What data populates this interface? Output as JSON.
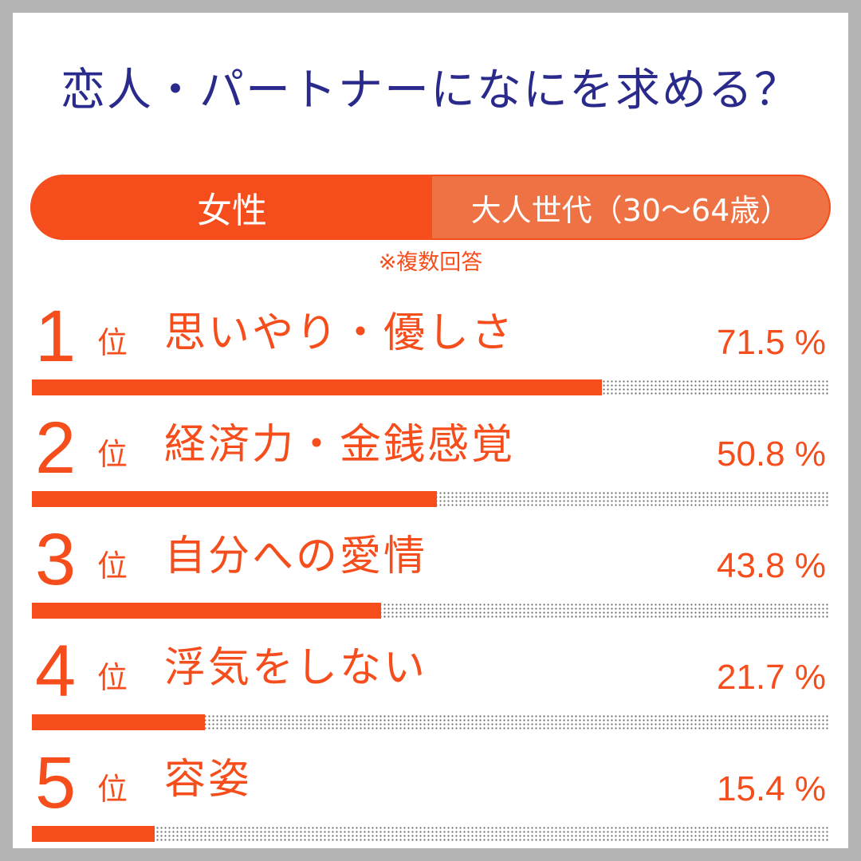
{
  "title": "恋人・パートナーになにを求める？",
  "segment": {
    "left": "女性",
    "right": "大人世代（30〜64歳）"
  },
  "note": "※複数回答",
  "rank_unit": "位",
  "colors": {
    "accent": "#f54d1c",
    "accent_light": "#ee7243",
    "title": "#2a2a8c"
  },
  "chart_data": {
    "type": "bar",
    "orientation": "horizontal",
    "unit": "%",
    "xlim": [
      0,
      100
    ],
    "grid": false,
    "legend": "none",
    "categories": [
      "思いやり・優しさ",
      "経済力・金銭感覚",
      "自分への愛情",
      "浮気をしない",
      "容姿"
    ],
    "ranks": [
      1,
      2,
      3,
      4,
      5
    ],
    "values": [
      71.5,
      50.8,
      43.8,
      21.7,
      15.4
    ],
    "value_labels": [
      "71.5 %",
      "50.8 %",
      "43.8 %",
      "21.7 %",
      "15.4 %"
    ]
  }
}
